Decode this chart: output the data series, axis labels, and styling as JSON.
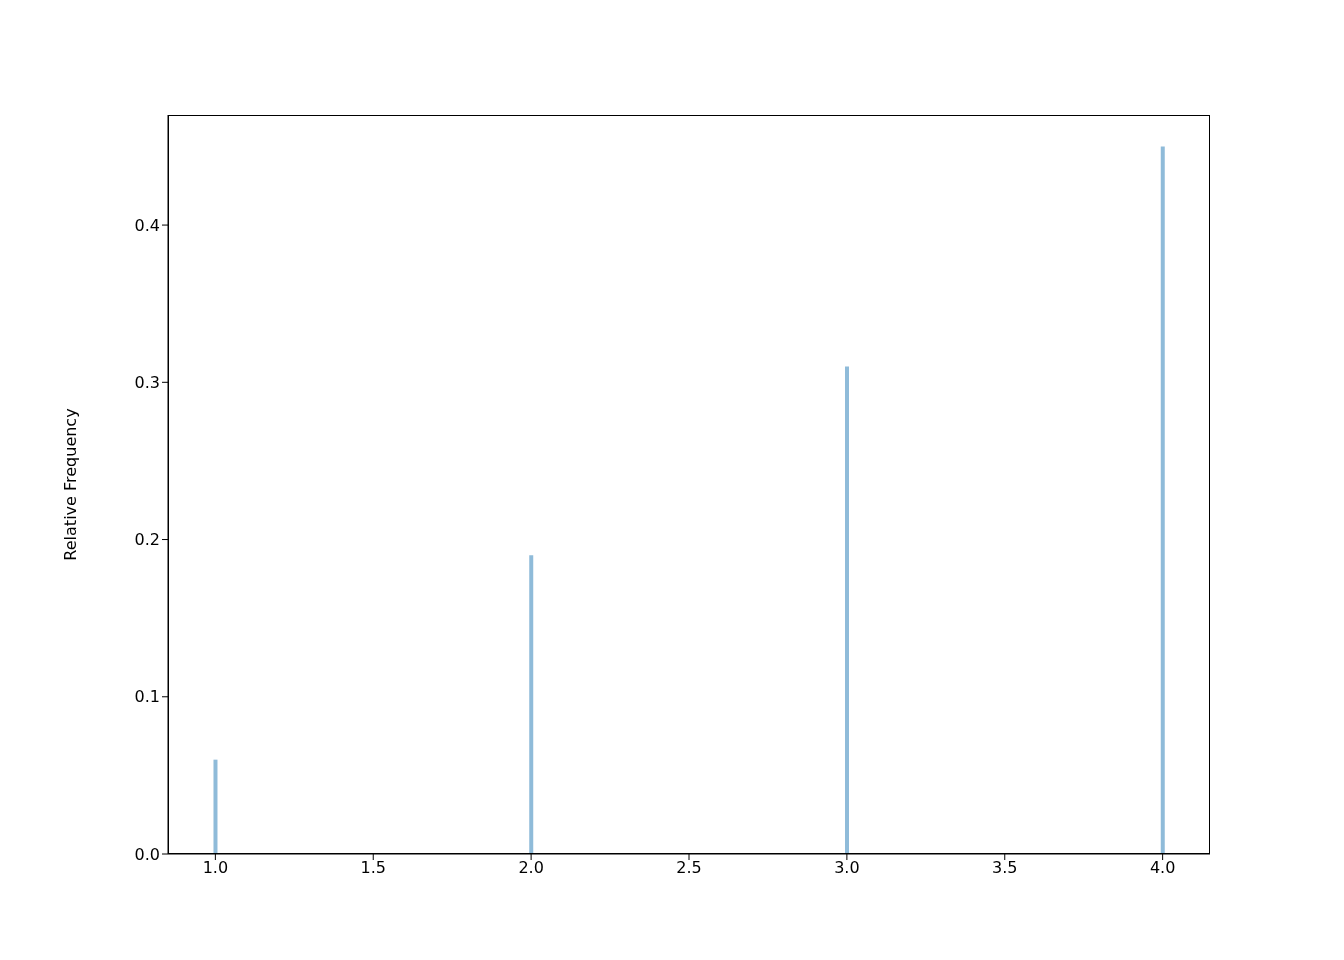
{
  "chart_data": {
    "type": "bar",
    "ylabel": "Relative Frequency",
    "x": [
      1,
      2,
      3,
      4
    ],
    "values": [
      0.06,
      0.19,
      0.31,
      0.45
    ],
    "color": "#8fbbd9",
    "xlim": [
      0.85,
      4.15
    ],
    "xticks": [
      {
        "value": 1,
        "label": "1.0"
      },
      1.5,
      {
        "value": 2,
        "label": "2.0"
      },
      2.5,
      {
        "value": 3,
        "label": "3.0"
      },
      3.5,
      {
        "value": 4,
        "label": "4.0"
      }
    ],
    "ylim": [
      0,
      0.47
    ],
    "yticks": [
      {
        "value": 0,
        "label": "0.0"
      },
      0.1,
      0.2,
      0.3,
      0.4
    ]
  }
}
